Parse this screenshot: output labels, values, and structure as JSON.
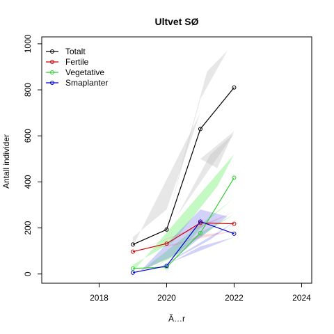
{
  "chart_data": {
    "type": "line",
    "title": "Ultvet SØ",
    "xlabel": "Ã…r",
    "ylabel": "Antall individer",
    "xlim": [
      2016.3,
      2024.3
    ],
    "ylim": [
      -40,
      1030
    ],
    "x_ticks": [
      2018,
      2020,
      2022,
      2024
    ],
    "y_ticks": [
      0,
      200,
      400,
      600,
      800,
      1000
    ],
    "grid": false,
    "legend_position": "top-left",
    "x": [
      2019,
      2020,
      2021,
      2022
    ],
    "series": [
      {
        "name": "Totalt",
        "color": "#000000",
        "values": [
          128,
          193,
          630,
          810
        ]
      },
      {
        "name": "Fertile",
        "color": "#cc0000",
        "values": [
          97,
          132,
          222,
          218
        ]
      },
      {
        "name": "Vegetative",
        "color": "#33cc33",
        "values": [
          24,
          30,
          178,
          418
        ]
      },
      {
        "name": "Smaplanter",
        "color": "#0000cc",
        "values": [
          6,
          35,
          228,
          175
        ]
      }
    ],
    "bands": [
      {
        "series": "Totalt",
        "fill": "#bbbbbb",
        "opacity": 0.35,
        "polys": [
          [
            [
              2019,
              120
            ],
            [
              2021,
              700
            ],
            [
              2020,
              280
            ],
            [
              2019,
              160
            ]
          ],
          [
            [
              2020,
              220
            ],
            [
              2021,
              760
            ],
            [
              2021.8,
              970
            ],
            [
              2021.2,
              880
            ],
            [
              2020.4,
              450
            ]
          ],
          [
            [
              2020.3,
              250
            ],
            [
              2022,
              610
            ],
            [
              2021.3,
              520
            ],
            [
              2020.6,
              330
            ]
          ],
          [
            [
              2021,
              500
            ],
            [
              2022,
              620
            ],
            [
              2021.5,
              460
            ]
          ]
        ]
      },
      {
        "series": "Vegetative",
        "fill": "#55ee55",
        "opacity": 0.35,
        "polys": [
          [
            [
              2019,
              10
            ],
            [
              2022,
              520
            ],
            [
              2021.5,
              380
            ],
            [
              2020.2,
              140
            ],
            [
              2019,
              40
            ]
          ],
          [
            [
              2019.3,
              20
            ],
            [
              2022,
              330
            ],
            [
              2021.2,
              230
            ],
            [
              2020.3,
              80
            ]
          ],
          [
            [
              2019.5,
              15
            ],
            [
              2022,
              260
            ],
            [
              2021,
              180
            ],
            [
              2020,
              60
            ]
          ]
        ]
      },
      {
        "series": "Fertile",
        "fill": "#ee8888",
        "opacity": 0.3,
        "polys": [
          [
            [
              2019,
              95
            ],
            [
              2022,
              270
            ],
            [
              2021,
              200
            ],
            [
              2020,
              150
            ]
          ],
          [
            [
              2019.5,
              110
            ],
            [
              2022,
              185
            ],
            [
              2021,
              170
            ],
            [
              2020.3,
              125
            ]
          ]
        ]
      },
      {
        "series": "Smaplanter",
        "fill": "#6666ee",
        "opacity": 0.3,
        "polys": [
          [
            [
              2019.2,
              10
            ],
            [
              2021,
              280
            ],
            [
              2021.8,
              250
            ],
            [
              2020.5,
              100
            ]
          ],
          [
            [
              2019.6,
              20
            ],
            [
              2022,
              160
            ],
            [
              2021,
              120
            ],
            [
              2020,
              40
            ]
          ],
          [
            [
              2019.8,
              30
            ],
            [
              2022,
              225
            ],
            [
              2021.3,
              150
            ]
          ]
        ]
      }
    ]
  }
}
